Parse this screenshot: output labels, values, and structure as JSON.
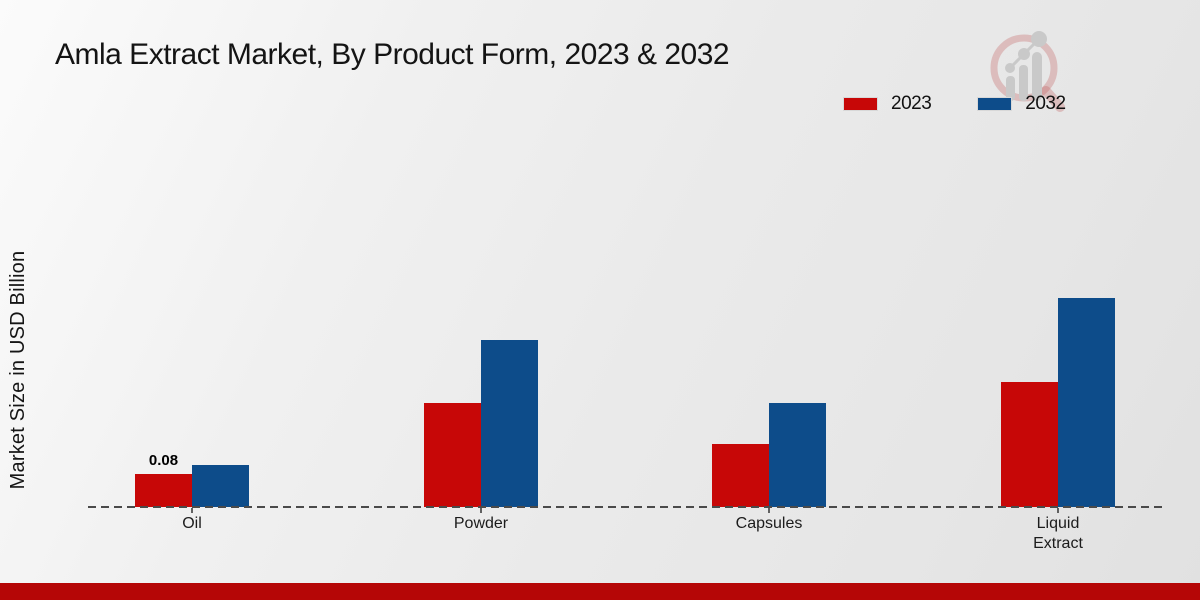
{
  "title": "Amla Extract Market, By Product Form, 2023 & 2032",
  "watermark": "brand-logo-magnifier-chart",
  "colors": {
    "series_2023": "#c70707",
    "series_2032": "#0d4c8a",
    "footer_accent": "#b50606",
    "axis_line": "#4a4a4a",
    "watermark_ring": "rgba(192,90,90,0.30)",
    "watermark_gray": "#c9c9c9"
  },
  "chart_data": {
    "type": "bar",
    "title": "Amla Extract Market, By Product Form, 2023 & 2032",
    "xlabel": "",
    "ylabel": "Market Size in USD Billion",
    "categories": [
      "Oil",
      "Powder",
      "Capsules",
      "Liquid Extract"
    ],
    "series": [
      {
        "name": "2023",
        "color": "#c70707",
        "values": [
          0.08,
          0.25,
          0.15,
          0.3
        ]
      },
      {
        "name": "2032",
        "color": "#0d4c8a",
        "values": [
          0.1,
          0.4,
          0.25,
          0.5
        ]
      }
    ],
    "shown_value_labels": [
      {
        "series": "2023",
        "category": "Oil",
        "label": "0.08"
      }
    ],
    "ylim": [
      0,
      0.55
    ],
    "grid": false,
    "y_axis_ticks_visible": false,
    "baseline_style": "dashed",
    "legend_position": "top-right"
  }
}
